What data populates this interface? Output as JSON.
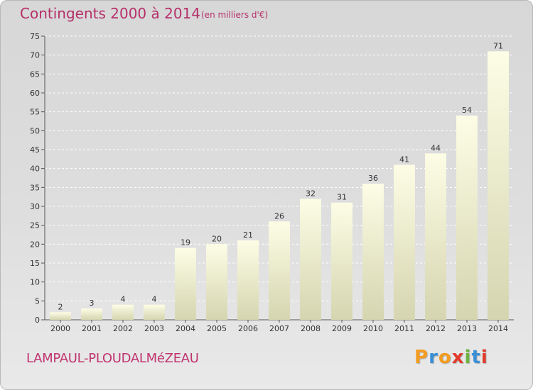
{
  "header": {
    "title": "Contingents 2000 à 2014",
    "unit": "(en milliers d'€)"
  },
  "footer": {
    "commune": "LAMPAUL-PLOUDALMéZEAU",
    "logo_letters": [
      "P",
      "r",
      "o",
      "x",
      "i",
      "t",
      "i"
    ],
    "logo_colors": [
      "#f39c1f",
      "#3a8fd6",
      "#f39c1f",
      "#e23b2d",
      "#6cb33f",
      "#3a8fd6",
      "#e23b2d"
    ]
  },
  "chart_data": {
    "type": "bar",
    "title": "Contingents 2000 à 2014",
    "subtitle": "(en milliers d'€)",
    "categories": [
      "2000",
      "2001",
      "2002",
      "2003",
      "2004",
      "2005",
      "2006",
      "2007",
      "2008",
      "2009",
      "2010",
      "2011",
      "2012",
      "2013",
      "2014"
    ],
    "values": [
      2,
      3,
      4,
      4,
      19,
      20,
      21,
      26,
      32,
      31,
      36,
      41,
      44,
      54,
      71
    ],
    "ylim": [
      0,
      75
    ],
    "yticks": [
      0,
      5,
      10,
      15,
      20,
      25,
      30,
      35,
      40,
      45,
      50,
      55,
      60,
      65,
      70,
      75
    ],
    "grid": true,
    "bar_color_top": "#fdfde6",
    "bar_color_bottom": "#d5d5b0"
  }
}
